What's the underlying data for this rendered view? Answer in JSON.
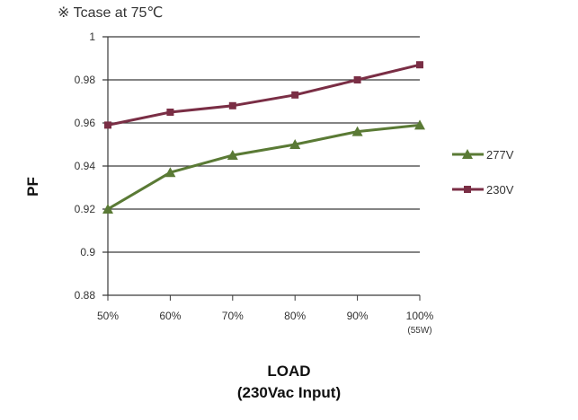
{
  "note": "※ Tcase at 75℃",
  "chart_data": {
    "type": "line",
    "title": "",
    "xlabel": "LOAD",
    "xlabel_sub": "(230Vac Input)",
    "ylabel": "PF",
    "categories": [
      "50%",
      "60%",
      "70%",
      "80%",
      "90%",
      "100%"
    ],
    "category_sublabels": [
      "",
      "",
      "",
      "",
      "",
      "(55W)"
    ],
    "ylim": [
      0.88,
      1.0
    ],
    "yticks": [
      "0.88",
      "0.9",
      "0.92",
      "0.94",
      "0.96",
      "0.98",
      "1"
    ],
    "grid": true,
    "legend_position": "right",
    "series": [
      {
        "name": "277V",
        "color": "#5a7a35",
        "marker": "triangle",
        "values": [
          0.92,
          0.937,
          0.945,
          0.95,
          0.956,
          0.959
        ]
      },
      {
        "name": "230V",
        "color": "#7a2e45",
        "marker": "square",
        "values": [
          0.959,
          0.965,
          0.968,
          0.973,
          0.98,
          0.987
        ]
      }
    ]
  }
}
